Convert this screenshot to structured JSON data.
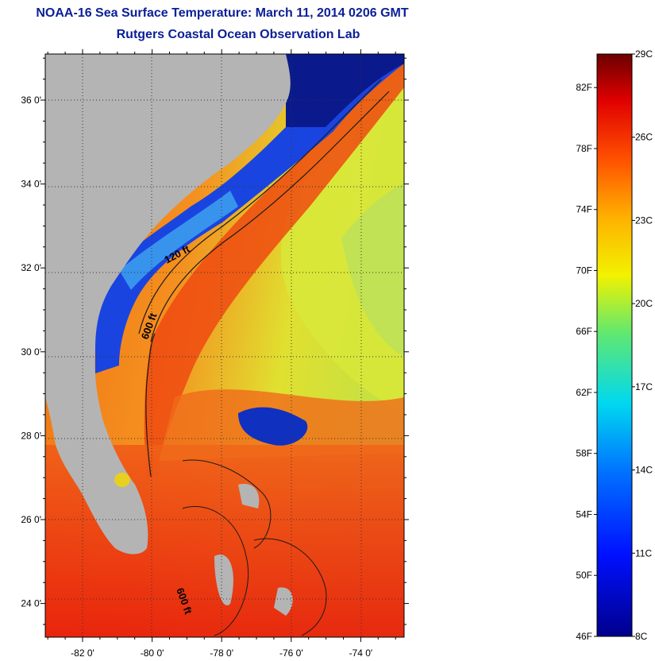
{
  "title": "NOAA-16 Sea Surface Temperature:  March 11, 2014 0206 GMT",
  "subtitle": "Rutgers Coastal Ocean Observation Lab",
  "map": {
    "lat_labels": [
      {
        "lat": 36,
        "label": "36 0'"
      },
      {
        "lat": 34,
        "label": "34 0'"
      },
      {
        "lat": 32,
        "label": "32 0'"
      },
      {
        "lat": 30,
        "label": "30 0'"
      },
      {
        "lat": 28,
        "label": "28 0'"
      },
      {
        "lat": 26,
        "label": "26 0'"
      },
      {
        "lat": 24,
        "label": "24 0'"
      }
    ],
    "lon_labels": [
      {
        "lon": -82,
        "label": "-82 0'"
      },
      {
        "lon": -80,
        "label": "-80 0'"
      },
      {
        "lon": -78,
        "label": "-78 0'"
      },
      {
        "lon": -76,
        "label": "-76 0'"
      },
      {
        "lon": -74,
        "label": "-74 0'"
      }
    ],
    "contour_labels": [
      {
        "label": "120 ft"
      },
      {
        "label": "600 ft"
      },
      {
        "label": "600 ft"
      }
    ],
    "colors": {
      "land": "#b4b4b4",
      "cold": "#0a1a8c",
      "mid": "#f2e81e",
      "warm": "#ee2a0c",
      "contour": "#1a1a1a"
    }
  },
  "colorbar": {
    "fahrenheit_labels": [
      "82F",
      "78F",
      "74F",
      "70F",
      "66F",
      "62F",
      "58F",
      "54F",
      "50F",
      "46F"
    ],
    "celsius_labels": [
      "29C",
      "26C",
      "23C",
      "20C",
      "17C",
      "14C",
      "11C",
      "8C"
    ],
    "range_c": [
      8,
      29
    ]
  }
}
